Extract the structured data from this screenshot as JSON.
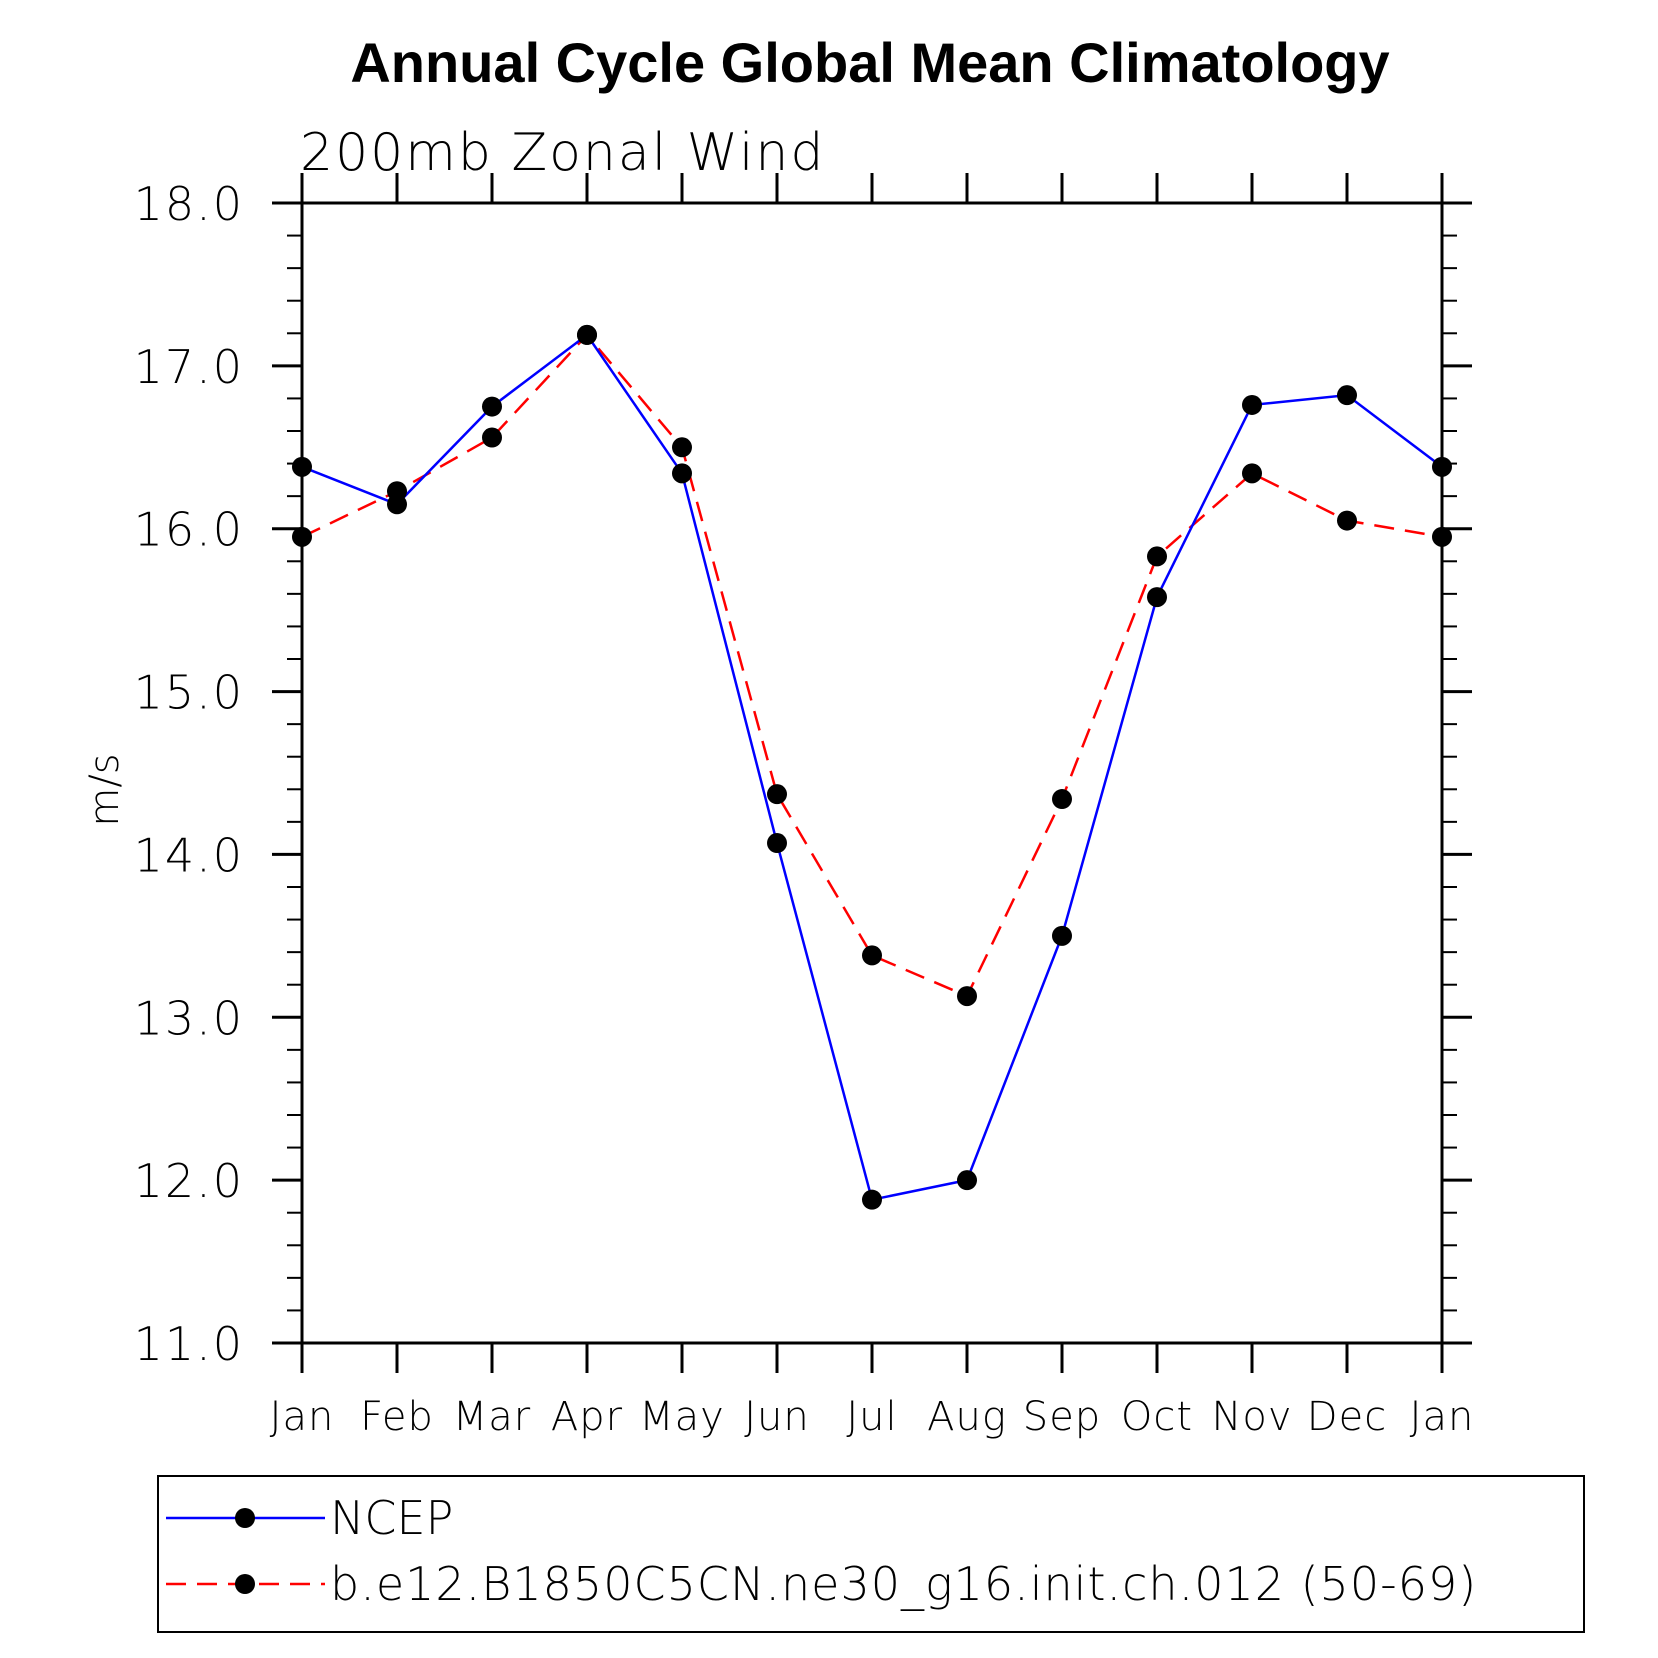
{
  "chart_data": {
    "type": "line",
    "title": "Annual Cycle Global Mean Climatology",
    "subtitle": "200mb Zonal Wind",
    "ylabel": "m/s",
    "xlabel": "",
    "categories": [
      "Jan",
      "Feb",
      "Mar",
      "Apr",
      "May",
      "Jun",
      "Jul",
      "Aug",
      "Sep",
      "Oct",
      "Nov",
      "Dec",
      "Jan"
    ],
    "ylim": [
      11.0,
      18.0
    ],
    "yticks": [
      "11.0",
      "12.0",
      "13.0",
      "14.0",
      "15.0",
      "16.0",
      "17.0",
      "18.0"
    ],
    "grid": false,
    "legend_position": "bottom",
    "series": [
      {
        "name": "NCEP",
        "color": "#0000ff",
        "line_style": "solid",
        "values": [
          16.38,
          16.15,
          16.75,
          17.19,
          16.34,
          14.07,
          11.88,
          12.0,
          13.5,
          15.58,
          16.76,
          16.82,
          16.38
        ]
      },
      {
        "name": "b.e12.B1850C5CN.ne30_g16.init.ch.012 (50-69)",
        "color": "#ff0000",
        "line_style": "dashed",
        "values": [
          15.95,
          16.23,
          16.56,
          17.19,
          16.5,
          14.37,
          13.38,
          13.13,
          14.34,
          15.83,
          16.34,
          16.05,
          15.95
        ]
      }
    ]
  }
}
